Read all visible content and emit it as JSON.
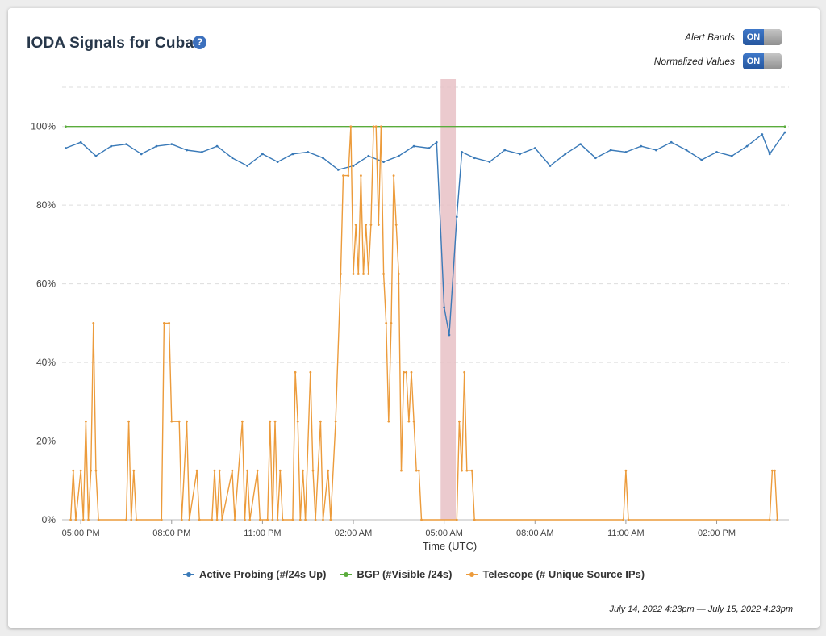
{
  "title": "IODA Signals for Cuba",
  "help_icon": "?",
  "toggles": [
    {
      "label": "Alert Bands",
      "state": "ON"
    },
    {
      "label": "Normalized Values",
      "state": "ON"
    }
  ],
  "date_range": "July 14, 2022 4:23pm — July 15, 2022 4:23pm",
  "colors": {
    "active_probing": "#3a7ab8",
    "bgp": "#5aac3c",
    "telescope": "#ec9b3b",
    "alert_band": "#e8c1c6"
  },
  "chart_data": {
    "type": "line",
    "xlabel": "Time (UTC)",
    "ylabel": "",
    "ylim": [
      0,
      110
    ],
    "x_range": [
      "2022-07-14 16:23",
      "2022-07-15 16:23"
    ],
    "x_ticks": [
      {
        "time": "2022-07-14 17:00",
        "label": "05:00 PM"
      },
      {
        "time": "2022-07-14 20:00",
        "label": "08:00 PM"
      },
      {
        "time": "2022-07-14 23:00",
        "label": "11:00 PM"
      },
      {
        "time": "2022-07-15 02:00",
        "label": "02:00 AM"
      },
      {
        "time": "2022-07-15 05:00",
        "label": "05:00 AM"
      },
      {
        "time": "2022-07-15 08:00",
        "label": "08:00 AM"
      },
      {
        "time": "2022-07-15 11:00",
        "label": "11:00 AM"
      },
      {
        "time": "2022-07-15 14:00",
        "label": "02:00 PM"
      }
    ],
    "y_ticks": [
      {
        "value": 0,
        "label": "0%"
      },
      {
        "value": 20,
        "label": "20%"
      },
      {
        "value": 40,
        "label": "40%"
      },
      {
        "value": 60,
        "label": "60%"
      },
      {
        "value": 80,
        "label": "80%"
      },
      {
        "value": 100,
        "label": "100%"
      }
    ],
    "grid": true,
    "legend_position": "bottom",
    "alert_bands": [
      {
        "start": "2022-07-15 04:53",
        "end": "2022-07-15 05:23"
      }
    ],
    "series": [
      {
        "name": "Active Probing (#/24s Up)",
        "color": "#3a7ab8",
        "points": [
          [
            "2022-07-14 16:30",
            94.5
          ],
          [
            "2022-07-14 17:00",
            96
          ],
          [
            "2022-07-14 17:30",
            92.5
          ],
          [
            "2022-07-14 18:00",
            95
          ],
          [
            "2022-07-14 18:30",
            95.5
          ],
          [
            "2022-07-14 19:00",
            93
          ],
          [
            "2022-07-14 19:30",
            95
          ],
          [
            "2022-07-14 20:00",
            95.5
          ],
          [
            "2022-07-14 20:30",
            94
          ],
          [
            "2022-07-14 21:00",
            93.5
          ],
          [
            "2022-07-14 21:30",
            95
          ],
          [
            "2022-07-14 22:00",
            92
          ],
          [
            "2022-07-14 22:30",
            90
          ],
          [
            "2022-07-14 23:00",
            93
          ],
          [
            "2022-07-14 23:30",
            91
          ],
          [
            "2022-07-15 00:00",
            93
          ],
          [
            "2022-07-15 00:30",
            93.5
          ],
          [
            "2022-07-15 01:00",
            92
          ],
          [
            "2022-07-15 01:30",
            89
          ],
          [
            "2022-07-15 02:00",
            90
          ],
          [
            "2022-07-15 02:30",
            92.5
          ],
          [
            "2022-07-15 03:00",
            91
          ],
          [
            "2022-07-15 03:30",
            92.5
          ],
          [
            "2022-07-15 04:00",
            95
          ],
          [
            "2022-07-15 04:30",
            94.5
          ],
          [
            "2022-07-15 04:45",
            96
          ],
          [
            "2022-07-15 05:00",
            54
          ],
          [
            "2022-07-15 05:10",
            47
          ],
          [
            "2022-07-15 05:25",
            77
          ],
          [
            "2022-07-15 05:35",
            93.5
          ],
          [
            "2022-07-15 06:00",
            92
          ],
          [
            "2022-07-15 06:30",
            91
          ],
          [
            "2022-07-15 07:00",
            94
          ],
          [
            "2022-07-15 07:30",
            93
          ],
          [
            "2022-07-15 08:00",
            94.5
          ],
          [
            "2022-07-15 08:30",
            90
          ],
          [
            "2022-07-15 09:00",
            93
          ],
          [
            "2022-07-15 09:30",
            95.5
          ],
          [
            "2022-07-15 10:00",
            92
          ],
          [
            "2022-07-15 10:30",
            94
          ],
          [
            "2022-07-15 11:00",
            93.5
          ],
          [
            "2022-07-15 11:30",
            95
          ],
          [
            "2022-07-15 12:00",
            94
          ],
          [
            "2022-07-15 12:30",
            96
          ],
          [
            "2022-07-15 13:00",
            94
          ],
          [
            "2022-07-15 13:30",
            91.5
          ],
          [
            "2022-07-15 14:00",
            93.5
          ],
          [
            "2022-07-15 14:30",
            92.5
          ],
          [
            "2022-07-15 15:00",
            95
          ],
          [
            "2022-07-15 15:30",
            98
          ],
          [
            "2022-07-15 15:45",
            93
          ],
          [
            "2022-07-15 16:15",
            98.5
          ]
        ]
      },
      {
        "name": "BGP (#Visible /24s)",
        "color": "#5aac3c",
        "points": [
          [
            "2022-07-14 16:30",
            100
          ],
          [
            "2022-07-15 16:15",
            100
          ]
        ]
      },
      {
        "name": "Telescope (# Unique Source IPs)",
        "color": "#ec9b3b",
        "points": [
          [
            "2022-07-14 16:40",
            0
          ],
          [
            "2022-07-14 16:45",
            12.5
          ],
          [
            "2022-07-14 16:50",
            0
          ],
          [
            "2022-07-14 17:00",
            12.5
          ],
          [
            "2022-07-14 17:05",
            0
          ],
          [
            "2022-07-14 17:10",
            25
          ],
          [
            "2022-07-14 17:15",
            0
          ],
          [
            "2022-07-14 17:20",
            12.5
          ],
          [
            "2022-07-14 17:25",
            50
          ],
          [
            "2022-07-14 17:30",
            12.5
          ],
          [
            "2022-07-14 17:35",
            0
          ],
          [
            "2022-07-14 18:30",
            0
          ],
          [
            "2022-07-14 18:35",
            25
          ],
          [
            "2022-07-14 18:40",
            0
          ],
          [
            "2022-07-14 18:45",
            12.5
          ],
          [
            "2022-07-14 18:50",
            0
          ],
          [
            "2022-07-14 19:40",
            0
          ],
          [
            "2022-07-14 19:45",
            50
          ],
          [
            "2022-07-14 19:55",
            50
          ],
          [
            "2022-07-14 20:00",
            25
          ],
          [
            "2022-07-14 20:15",
            25
          ],
          [
            "2022-07-14 20:20",
            0
          ],
          [
            "2022-07-14 20:30",
            25
          ],
          [
            "2022-07-14 20:35",
            0
          ],
          [
            "2022-07-14 20:50",
            12.5
          ],
          [
            "2022-07-14 20:55",
            0
          ],
          [
            "2022-07-14 21:20",
            0
          ],
          [
            "2022-07-14 21:25",
            12.5
          ],
          [
            "2022-07-14 21:30",
            0
          ],
          [
            "2022-07-14 21:35",
            12.5
          ],
          [
            "2022-07-14 21:40",
            0
          ],
          [
            "2022-07-14 22:00",
            12.5
          ],
          [
            "2022-07-14 22:05",
            0
          ],
          [
            "2022-07-14 22:20",
            25
          ],
          [
            "2022-07-14 22:25",
            0
          ],
          [
            "2022-07-14 22:30",
            12.5
          ],
          [
            "2022-07-14 22:35",
            0
          ],
          [
            "2022-07-14 22:50",
            12.5
          ],
          [
            "2022-07-14 22:55",
            0
          ],
          [
            "2022-07-14 23:10",
            0
          ],
          [
            "2022-07-14 23:15",
            25
          ],
          [
            "2022-07-14 23:20",
            0
          ],
          [
            "2022-07-14 23:25",
            25
          ],
          [
            "2022-07-14 23:30",
            0
          ],
          [
            "2022-07-14 23:35",
            12.5
          ],
          [
            "2022-07-14 23:40",
            0
          ],
          [
            "2022-07-15 00:00",
            0
          ],
          [
            "2022-07-15 00:05",
            37.5
          ],
          [
            "2022-07-15 00:10",
            25
          ],
          [
            "2022-07-15 00:15",
            0
          ],
          [
            "2022-07-15 00:20",
            12.5
          ],
          [
            "2022-07-15 00:25",
            0
          ],
          [
            "2022-07-15 00:35",
            37.5
          ],
          [
            "2022-07-15 00:40",
            12.5
          ],
          [
            "2022-07-15 00:45",
            0
          ],
          [
            "2022-07-15 00:55",
            25
          ],
          [
            "2022-07-15 01:00",
            0
          ],
          [
            "2022-07-15 01:10",
            12.5
          ],
          [
            "2022-07-15 01:15",
            0
          ],
          [
            "2022-07-15 01:25",
            25
          ],
          [
            "2022-07-15 01:35",
            62.5
          ],
          [
            "2022-07-15 01:40",
            87.5
          ],
          [
            "2022-07-15 01:50",
            87.5
          ],
          [
            "2022-07-15 01:55",
            100
          ],
          [
            "2022-07-15 02:00",
            62.5
          ],
          [
            "2022-07-15 02:05",
            75
          ],
          [
            "2022-07-15 02:10",
            62.5
          ],
          [
            "2022-07-15 02:15",
            87.5
          ],
          [
            "2022-07-15 02:20",
            62.5
          ],
          [
            "2022-07-15 02:25",
            75
          ],
          [
            "2022-07-15 02:30",
            62.5
          ],
          [
            "2022-07-15 02:35",
            75
          ],
          [
            "2022-07-15 02:40",
            100
          ],
          [
            "2022-07-15 02:45",
            100
          ],
          [
            "2022-07-15 02:50",
            75
          ],
          [
            "2022-07-15 02:55",
            100
          ],
          [
            "2022-07-15 03:00",
            62.5
          ],
          [
            "2022-07-15 03:05",
            50
          ],
          [
            "2022-07-15 03:10",
            25
          ],
          [
            "2022-07-15 03:15",
            50
          ],
          [
            "2022-07-15 03:20",
            87.5
          ],
          [
            "2022-07-15 03:25",
            75
          ],
          [
            "2022-07-15 03:30",
            62.5
          ],
          [
            "2022-07-15 03:35",
            12.5
          ],
          [
            "2022-07-15 03:40",
            37.5
          ],
          [
            "2022-07-15 03:45",
            37.5
          ],
          [
            "2022-07-15 03:50",
            25
          ],
          [
            "2022-07-15 03:55",
            37.5
          ],
          [
            "2022-07-15 04:00",
            25
          ],
          [
            "2022-07-15 04:05",
            12.5
          ],
          [
            "2022-07-15 04:10",
            12.5
          ],
          [
            "2022-07-15 04:15",
            0
          ],
          [
            "2022-07-15 05:25",
            0
          ],
          [
            "2022-07-15 05:30",
            25
          ],
          [
            "2022-07-15 05:35",
            12.5
          ],
          [
            "2022-07-15 05:40",
            37.5
          ],
          [
            "2022-07-15 05:45",
            12.5
          ],
          [
            "2022-07-15 05:55",
            12.5
          ],
          [
            "2022-07-15 06:00",
            0
          ],
          [
            "2022-07-15 10:55",
            0
          ],
          [
            "2022-07-15 11:00",
            12.5
          ],
          [
            "2022-07-15 11:05",
            0
          ],
          [
            "2022-07-15 15:45",
            0
          ],
          [
            "2022-07-15 15:50",
            12.5
          ],
          [
            "2022-07-15 15:55",
            12.5
          ],
          [
            "2022-07-15 16:00",
            0
          ]
        ]
      }
    ]
  }
}
